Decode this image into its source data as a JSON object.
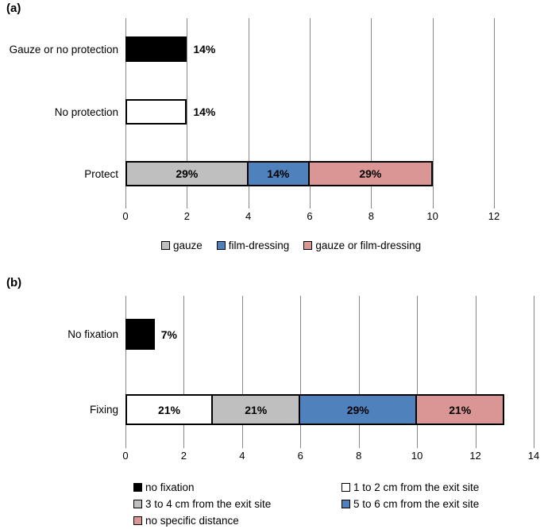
{
  "figure": {
    "background": "#ffffff"
  },
  "colors": {
    "black": "#000000",
    "white": "#ffffff",
    "gray": "#bfbfbf",
    "blue": "#4f81bd",
    "pink": "#d99694",
    "gridline": "#878787",
    "text": "#000000"
  },
  "chart_data": [
    {
      "id": "a",
      "panel_label": "(a)",
      "type": "bar",
      "orientation": "horizontal",
      "stacked": true,
      "grid": true,
      "xlim": [
        0,
        12
      ],
      "x_ticks": [
        "0",
        "2",
        "4",
        "6",
        "8",
        "10",
        "12"
      ],
      "categories": [
        "Gauze or no protection",
        "No protection",
        "Protect"
      ],
      "rows": [
        {
          "category": "Gauze or no protection",
          "segments": [
            {
              "name": "gauze or no protection",
              "color_key": "black",
              "start": 0,
              "end": 2,
              "value": 2,
              "label": "14%",
              "label_position": "outside"
            }
          ]
        },
        {
          "category": "No protection",
          "segments": [
            {
              "name": "no protection",
              "color_key": "white",
              "start": 0,
              "end": 2,
              "value": 2,
              "label": "14%",
              "label_position": "outside"
            }
          ]
        },
        {
          "category": "Protect",
          "segments": [
            {
              "name": "gauze",
              "color_key": "gray",
              "start": 0,
              "end": 4,
              "value": 4,
              "label": "29%",
              "label_position": "inside"
            },
            {
              "name": "film-dressing",
              "color_key": "blue",
              "start": 4,
              "end": 6,
              "value": 2,
              "label": "14%",
              "label_position": "inside"
            },
            {
              "name": "gauze or film-dressing",
              "color_key": "pink",
              "start": 6,
              "end": 10,
              "value": 4,
              "label": "29%",
              "label_position": "inside"
            }
          ]
        }
      ],
      "legend": {
        "position": "bottom",
        "layout": "single-row",
        "items": [
          {
            "label": "gauze",
            "color_key": "gray"
          },
          {
            "label": "film-dressing",
            "color_key": "blue"
          },
          {
            "label": "gauze or film-dressing",
            "color_key": "pink"
          }
        ]
      }
    },
    {
      "id": "b",
      "panel_label": "(b)",
      "type": "bar",
      "orientation": "horizontal",
      "stacked": true,
      "grid": true,
      "xlim": [
        0,
        14
      ],
      "x_ticks": [
        "0",
        "2",
        "4",
        "6",
        "8",
        "10",
        "12",
        "14"
      ],
      "categories": [
        "No fixation",
        "Fixing"
      ],
      "rows": [
        {
          "category": "No fixation",
          "segments": [
            {
              "name": "no fixation",
              "color_key": "black",
              "start": 0,
              "end": 1,
              "value": 1,
              "label": "7%",
              "label_position": "outside"
            }
          ]
        },
        {
          "category": "Fixing",
          "segments": [
            {
              "name": "1 to 2 cm from the exit site",
              "color_key": "white",
              "start": 0,
              "end": 3,
              "value": 3,
              "label": "21%",
              "label_position": "inside"
            },
            {
              "name": "3 to 4 cm from the exit site",
              "color_key": "gray",
              "start": 3,
              "end": 6,
              "value": 3,
              "label": "21%",
              "label_position": "inside"
            },
            {
              "name": "5 to 6 cm from the exit site",
              "color_key": "blue",
              "start": 6,
              "end": 10,
              "value": 4,
              "label": "29%",
              "label_position": "inside"
            },
            {
              "name": "no specific distance",
              "color_key": "pink",
              "start": 10,
              "end": 13,
              "value": 3,
              "label": "21%",
              "label_position": "inside"
            }
          ]
        }
      ],
      "legend": {
        "position": "bottom",
        "layout": "two-column",
        "items": [
          {
            "label": "no fixation",
            "color_key": "black"
          },
          {
            "label": "1 to 2 cm from the exit site",
            "color_key": "white"
          },
          {
            "label": "3 to 4 cm from the exit site",
            "color_key": "gray"
          },
          {
            "label": "5 to 6 cm from the exit site",
            "color_key": "blue"
          },
          {
            "label": "no specific distance",
            "color_key": "pink"
          }
        ]
      }
    }
  ]
}
